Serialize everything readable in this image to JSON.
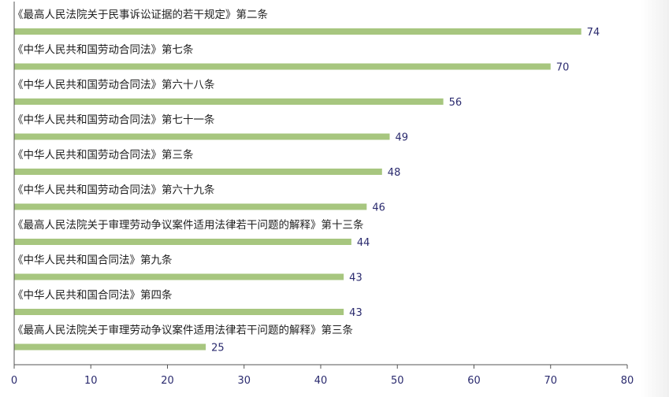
{
  "chart_data": {
    "type": "bar",
    "orientation": "horizontal",
    "categories": [
      "《最高人民法院关于民事诉讼证据的若干规定》第二条",
      "《中华人民共和国劳动合同法》第七条",
      "《中华人民共和国劳动合同法》第六十八条",
      "《中华人民共和国劳动合同法》第七十一条",
      "《中华人民共和国劳动合同法》第三条",
      "《中华人民共和国劳动合同法》第六十九条",
      "《最高人民法院关于审理劳动争议案件适用法律若干问题的解释》第十三条",
      "《中华人民共和国合同法》第九条",
      "《中华人民共和国合同法》第四条",
      "《最高人民法院关于审理劳动争议案件适用法律若干问题的解释》第三条"
    ],
    "values": [
      74,
      70,
      56,
      49,
      48,
      46,
      44,
      43,
      43,
      25
    ],
    "xlim": [
      0,
      80
    ],
    "x_ticks": [
      0,
      10,
      20,
      30,
      40,
      50,
      60,
      70,
      80
    ],
    "bar_color": "#a7c67f",
    "value_label_color": "#2a2a6e",
    "grid": false,
    "title": "",
    "xlabel": "",
    "ylabel": ""
  }
}
